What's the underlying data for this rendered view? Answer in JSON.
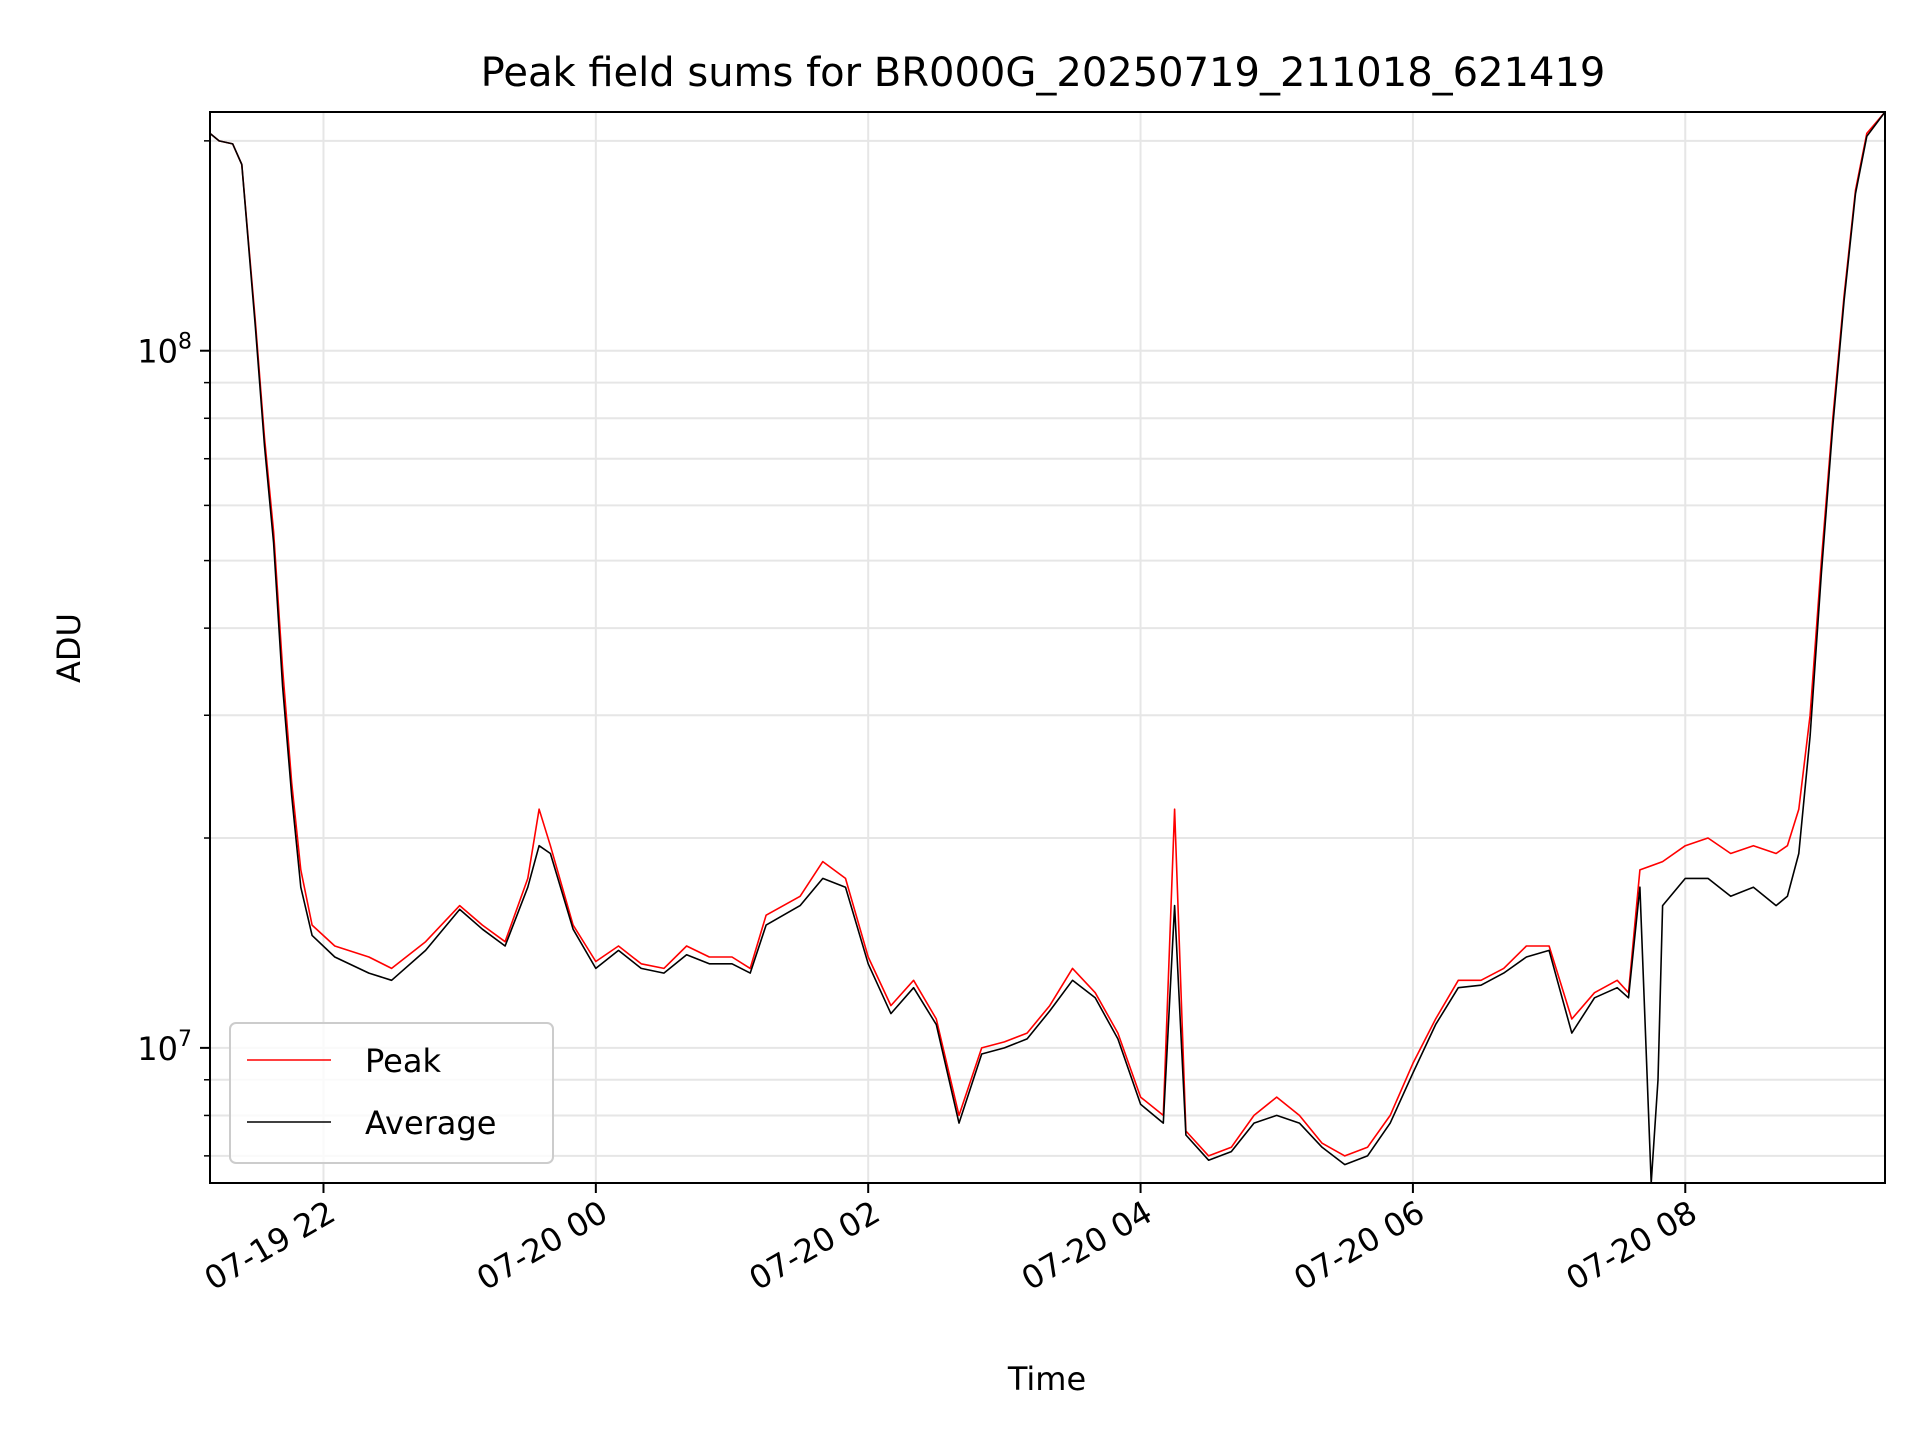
{
  "chart_data": {
    "type": "line",
    "title": "Peak field sums for BR000G_20250719_211018_621419",
    "xlabel": "Time",
    "ylabel": "ADU",
    "y_scale": "log",
    "ylim": [
      6400000,
      220000000
    ],
    "xlim": [
      "2025-07-19 21:10",
      "2025-07-20 09:28"
    ],
    "grid": true,
    "legend_position": "lower-left",
    "x_ticks": [
      {
        "t": "2025-07-19 22:00",
        "label": "07-19 22"
      },
      {
        "t": "2025-07-20 00:00",
        "label": "07-20 00"
      },
      {
        "t": "2025-07-20 02:00",
        "label": "07-20 02"
      },
      {
        "t": "2025-07-20 04:00",
        "label": "07-20 04"
      },
      {
        "t": "2025-07-20 06:00",
        "label": "07-20 06"
      },
      {
        "t": "2025-07-20 08:00",
        "label": "07-20 08"
      }
    ],
    "y_ticks": [
      {
        "value": 10000000,
        "base": "10",
        "exp": "7"
      },
      {
        "value": 100000000,
        "base": "10",
        "exp": "8"
      }
    ],
    "series": [
      {
        "name": "Peak",
        "color": "#ff0000",
        "points": [
          [
            "2025-07-19 21:10",
            205000000
          ],
          [
            "2025-07-19 21:14",
            200000000
          ],
          [
            "2025-07-19 21:20",
            198000000
          ],
          [
            "2025-07-19 21:24",
            185000000
          ],
          [
            "2025-07-19 21:30",
            110000000
          ],
          [
            "2025-07-19 21:34",
            75000000
          ],
          [
            "2025-07-19 21:38",
            55000000
          ],
          [
            "2025-07-19 21:42",
            35000000
          ],
          [
            "2025-07-19 21:46",
            24000000
          ],
          [
            "2025-07-19 21:50",
            18000000
          ],
          [
            "2025-07-19 21:55",
            15000000
          ],
          [
            "2025-07-19 22:05",
            14000000
          ],
          [
            "2025-07-19 22:20",
            13500000
          ],
          [
            "2025-07-19 22:30",
            13000000
          ],
          [
            "2025-07-19 22:45",
            14200000
          ],
          [
            "2025-07-19 23:00",
            16000000
          ],
          [
            "2025-07-19 23:10",
            15000000
          ],
          [
            "2025-07-19 23:20",
            14200000
          ],
          [
            "2025-07-19 23:30",
            17500000
          ],
          [
            "2025-07-19 23:35",
            22000000
          ],
          [
            "2025-07-19 23:40",
            19500000
          ],
          [
            "2025-07-19 23:50",
            15000000
          ],
          [
            "2025-07-20 00:00",
            13300000
          ],
          [
            "2025-07-20 00:10",
            14000000
          ],
          [
            "2025-07-20 00:20",
            13200000
          ],
          [
            "2025-07-20 00:30",
            13000000
          ],
          [
            "2025-07-20 00:40",
            14000000
          ],
          [
            "2025-07-20 00:50",
            13500000
          ],
          [
            "2025-07-20 01:00",
            13500000
          ],
          [
            "2025-07-20 01:08",
            13000000
          ],
          [
            "2025-07-20 01:15",
            15500000
          ],
          [
            "2025-07-20 01:30",
            16500000
          ],
          [
            "2025-07-20 01:40",
            18500000
          ],
          [
            "2025-07-20 01:50",
            17500000
          ],
          [
            "2025-07-20 02:00",
            13500000
          ],
          [
            "2025-07-20 02:10",
            11500000
          ],
          [
            "2025-07-20 02:20",
            12500000
          ],
          [
            "2025-07-20 02:30",
            11000000
          ],
          [
            "2025-07-20 02:40",
            8000000
          ],
          [
            "2025-07-20 02:50",
            10000000
          ],
          [
            "2025-07-20 03:00",
            10200000
          ],
          [
            "2025-07-20 03:10",
            10500000
          ],
          [
            "2025-07-20 03:20",
            11500000
          ],
          [
            "2025-07-20 03:30",
            13000000
          ],
          [
            "2025-07-20 03:40",
            12000000
          ],
          [
            "2025-07-20 03:50",
            10500000
          ],
          [
            "2025-07-20 04:00",
            8500000
          ],
          [
            "2025-07-20 04:10",
            8000000
          ],
          [
            "2025-07-20 04:15",
            22000000
          ],
          [
            "2025-07-20 04:20",
            7600000
          ],
          [
            "2025-07-20 04:30",
            7000000
          ],
          [
            "2025-07-20 04:40",
            7200000
          ],
          [
            "2025-07-20 04:50",
            8000000
          ],
          [
            "2025-07-20 05:00",
            8500000
          ],
          [
            "2025-07-20 05:10",
            8000000
          ],
          [
            "2025-07-20 05:20",
            7300000
          ],
          [
            "2025-07-20 05:30",
            7000000
          ],
          [
            "2025-07-20 05:40",
            7200000
          ],
          [
            "2025-07-20 05:50",
            8000000
          ],
          [
            "2025-07-20 06:00",
            9500000
          ],
          [
            "2025-07-20 06:10",
            11000000
          ],
          [
            "2025-07-20 06:20",
            12500000
          ],
          [
            "2025-07-20 06:30",
            12500000
          ],
          [
            "2025-07-20 06:40",
            13000000
          ],
          [
            "2025-07-20 06:50",
            14000000
          ],
          [
            "2025-07-20 07:00",
            14000000
          ],
          [
            "2025-07-20 07:10",
            11000000
          ],
          [
            "2025-07-20 07:20",
            12000000
          ],
          [
            "2025-07-20 07:30",
            12500000
          ],
          [
            "2025-07-20 07:35",
            12000000
          ],
          [
            "2025-07-20 07:40",
            18000000
          ],
          [
            "2025-07-20 07:50",
            18500000
          ],
          [
            "2025-07-20 08:00",
            19500000
          ],
          [
            "2025-07-20 08:10",
            20000000
          ],
          [
            "2025-07-20 08:20",
            19000000
          ],
          [
            "2025-07-20 08:30",
            19500000
          ],
          [
            "2025-07-20 08:40",
            19000000
          ],
          [
            "2025-07-20 08:45",
            19500000
          ],
          [
            "2025-07-20 08:50",
            22000000
          ],
          [
            "2025-07-20 08:55",
            30000000
          ],
          [
            "2025-07-20 09:00",
            50000000
          ],
          [
            "2025-07-20 09:05",
            80000000
          ],
          [
            "2025-07-20 09:10",
            120000000
          ],
          [
            "2025-07-20 09:15",
            170000000
          ],
          [
            "2025-07-20 09:20",
            205000000
          ],
          [
            "2025-07-20 09:28",
            220000000
          ]
        ]
      },
      {
        "name": "Average",
        "color": "#000000",
        "points": [
          [
            "2025-07-19 21:10",
            205000000
          ],
          [
            "2025-07-19 21:14",
            200000000
          ],
          [
            "2025-07-19 21:20",
            198000000
          ],
          [
            "2025-07-19 21:24",
            185000000
          ],
          [
            "2025-07-19 21:30",
            108000000
          ],
          [
            "2025-07-19 21:34",
            73000000
          ],
          [
            "2025-07-19 21:38",
            53000000
          ],
          [
            "2025-07-19 21:42",
            33000000
          ],
          [
            "2025-07-19 21:46",
            23000000
          ],
          [
            "2025-07-19 21:50",
            17000000
          ],
          [
            "2025-07-19 21:55",
            14500000
          ],
          [
            "2025-07-19 22:05",
            13500000
          ],
          [
            "2025-07-19 22:20",
            12800000
          ],
          [
            "2025-07-19 22:30",
            12500000
          ],
          [
            "2025-07-19 22:45",
            13800000
          ],
          [
            "2025-07-19 23:00",
            15800000
          ],
          [
            "2025-07-19 23:10",
            14800000
          ],
          [
            "2025-07-19 23:20",
            14000000
          ],
          [
            "2025-07-19 23:30",
            17000000
          ],
          [
            "2025-07-19 23:35",
            19500000
          ],
          [
            "2025-07-19 23:40",
            19000000
          ],
          [
            "2025-07-19 23:50",
            14800000
          ],
          [
            "2025-07-20 00:00",
            13000000
          ],
          [
            "2025-07-20 00:10",
            13800000
          ],
          [
            "2025-07-20 00:20",
            13000000
          ],
          [
            "2025-07-20 00:30",
            12800000
          ],
          [
            "2025-07-20 00:40",
            13600000
          ],
          [
            "2025-07-20 00:50",
            13200000
          ],
          [
            "2025-07-20 01:00",
            13200000
          ],
          [
            "2025-07-20 01:08",
            12800000
          ],
          [
            "2025-07-20 01:15",
            15000000
          ],
          [
            "2025-07-20 01:30",
            16000000
          ],
          [
            "2025-07-20 01:40",
            17500000
          ],
          [
            "2025-07-20 01:50",
            17000000
          ],
          [
            "2025-07-20 02:00",
            13200000
          ],
          [
            "2025-07-20 02:10",
            11200000
          ],
          [
            "2025-07-20 02:20",
            12200000
          ],
          [
            "2025-07-20 02:30",
            10800000
          ],
          [
            "2025-07-20 02:40",
            7800000
          ],
          [
            "2025-07-20 02:50",
            9800000
          ],
          [
            "2025-07-20 03:00",
            10000000
          ],
          [
            "2025-07-20 03:10",
            10300000
          ],
          [
            "2025-07-20 03:20",
            11300000
          ],
          [
            "2025-07-20 03:30",
            12500000
          ],
          [
            "2025-07-20 03:40",
            11800000
          ],
          [
            "2025-07-20 03:50",
            10300000
          ],
          [
            "2025-07-20 04:00",
            8300000
          ],
          [
            "2025-07-20 04:10",
            7800000
          ],
          [
            "2025-07-20 04:15",
            16000000
          ],
          [
            "2025-07-20 04:20",
            7500000
          ],
          [
            "2025-07-20 04:30",
            6900000
          ],
          [
            "2025-07-20 04:40",
            7100000
          ],
          [
            "2025-07-20 04:50",
            7800000
          ],
          [
            "2025-07-20 05:00",
            8000000
          ],
          [
            "2025-07-20 05:10",
            7800000
          ],
          [
            "2025-07-20 05:20",
            7200000
          ],
          [
            "2025-07-20 05:30",
            6800000
          ],
          [
            "2025-07-20 05:40",
            7000000
          ],
          [
            "2025-07-20 05:50",
            7800000
          ],
          [
            "2025-07-20 06:00",
            9200000
          ],
          [
            "2025-07-20 06:10",
            10800000
          ],
          [
            "2025-07-20 06:20",
            12200000
          ],
          [
            "2025-07-20 06:30",
            12300000
          ],
          [
            "2025-07-20 06:40",
            12800000
          ],
          [
            "2025-07-20 06:50",
            13500000
          ],
          [
            "2025-07-20 07:00",
            13800000
          ],
          [
            "2025-07-20 07:10",
            10500000
          ],
          [
            "2025-07-20 07:20",
            11800000
          ],
          [
            "2025-07-20 07:30",
            12200000
          ],
          [
            "2025-07-20 07:35",
            11800000
          ],
          [
            "2025-07-20 07:40",
            17000000
          ],
          [
            "2025-07-20 07:45",
            6400000
          ],
          [
            "2025-07-20 07:48",
            9000000
          ],
          [
            "2025-07-20 07:50",
            16000000
          ],
          [
            "2025-07-20 08:00",
            17500000
          ],
          [
            "2025-07-20 08:10",
            17500000
          ],
          [
            "2025-07-20 08:20",
            16500000
          ],
          [
            "2025-07-20 08:30",
            17000000
          ],
          [
            "2025-07-20 08:40",
            16000000
          ],
          [
            "2025-07-20 08:45",
            16500000
          ],
          [
            "2025-07-20 08:50",
            19000000
          ],
          [
            "2025-07-20 08:55",
            28000000
          ],
          [
            "2025-07-20 09:00",
            48000000
          ],
          [
            "2025-07-20 09:05",
            78000000
          ],
          [
            "2025-07-20 09:10",
            118000000
          ],
          [
            "2025-07-20 09:15",
            168000000
          ],
          [
            "2025-07-20 09:20",
            203000000
          ],
          [
            "2025-07-20 09:28",
            220000000
          ]
        ]
      }
    ]
  }
}
